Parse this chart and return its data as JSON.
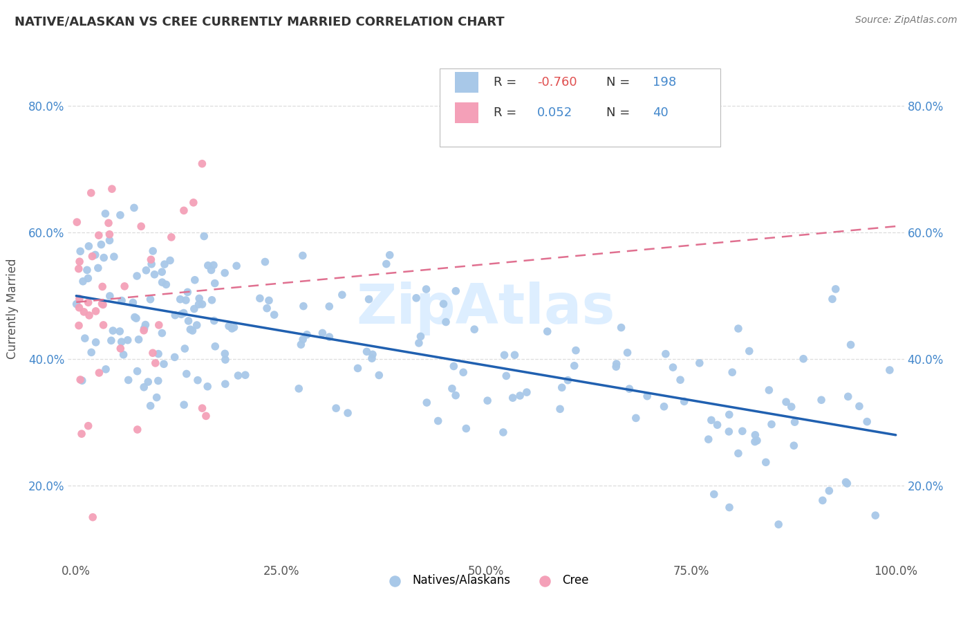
{
  "title": "NATIVE/ALASKAN VS CREE CURRENTLY MARRIED CORRELATION CHART",
  "source": "Source: ZipAtlas.com",
  "ylabel": "Currently Married",
  "xlim": [
    -0.01,
    1.01
  ],
  "ylim": [
    0.08,
    0.88
  ],
  "xticks": [
    0.0,
    0.25,
    0.5,
    0.75,
    1.0
  ],
  "xtick_labels": [
    "0.0%",
    "25.0%",
    "50.0%",
    "75.0%",
    "100.0%"
  ],
  "ytick_labels": [
    "20.0%",
    "40.0%",
    "60.0%",
    "80.0%"
  ],
  "ytick_vals": [
    0.2,
    0.4,
    0.6,
    0.8
  ],
  "blue_color": "#a8c8e8",
  "pink_color": "#f4a0b8",
  "blue_line_color": "#2060b0",
  "pink_line_color": "#e07090",
  "legend_r_blue": "-0.760",
  "legend_n_blue": "198",
  "legend_r_pink": "0.052",
  "legend_n_pink": "40",
  "legend_label_blue": "Natives/Alaskans",
  "legend_label_pink": "Cree",
  "blue_slope": -0.22,
  "blue_intercept": 0.5,
  "pink_slope": 0.12,
  "pink_intercept": 0.49,
  "background_color": "#ffffff",
  "grid_color": "#dddddd",
  "title_color": "#333333",
  "source_color": "#777777",
  "axis_label_color": "#555555",
  "yaxis_num_color": "#4488cc",
  "watermark_color": "#ddeeff",
  "watermark_text": "ZipAtlas"
}
